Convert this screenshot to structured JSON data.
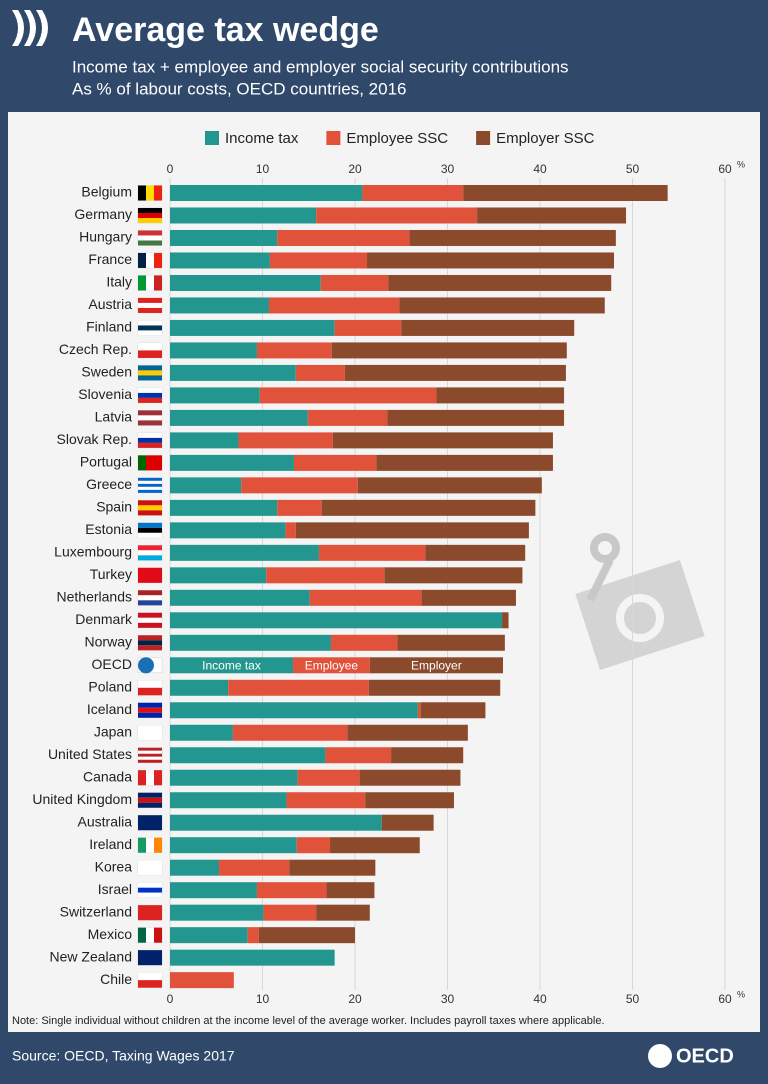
{
  "chart_data": {
    "type": "stacked-bar-horizontal",
    "title": "Average tax wedge",
    "subtitle": [
      "Income tax + employee and employer social security contributions",
      "As % of labour costs, OECD countries, 2016"
    ],
    "categories": [
      "Belgium",
      "Germany",
      "Hungary",
      "France",
      "Italy",
      "Austria",
      "Finland",
      "Czech Rep.",
      "Sweden",
      "Slovenia",
      "Latvia",
      "Slovak Rep.",
      "Portugal",
      "Greece",
      "Spain",
      "Estonia",
      "Luxembourg",
      "Turkey",
      "Netherlands",
      "Denmark",
      "Norway",
      "OECD",
      "Poland",
      "Iceland",
      "Japan",
      "United States",
      "Canada",
      "United Kingdom",
      "Australia",
      "Ireland",
      "Korea",
      "Israel",
      "Switzerland",
      "Mexico",
      "New Zealand",
      "Chile"
    ],
    "series": [
      {
        "name": "Income tax",
        "color": "#23978f",
        "values": [
          20.8,
          15.8,
          11.6,
          10.8,
          16.3,
          10.7,
          17.8,
          9.4,
          13.6,
          9.7,
          14.9,
          7.4,
          13.4,
          7.7,
          11.6,
          12.5,
          16.1,
          10.4,
          15.1,
          35.9,
          17.4,
          13.3,
          6.3,
          26.8,
          6.8,
          16.8,
          13.8,
          12.6,
          22.9,
          13.7,
          5.3,
          9.4,
          10.1,
          8.4,
          17.8,
          0
        ],
        "bar_labels": [
          null,
          null,
          null,
          null,
          null,
          null,
          null,
          null,
          null,
          null,
          null,
          null,
          null,
          null,
          null,
          null,
          null,
          null,
          null,
          null,
          null,
          "Income tax",
          null,
          null,
          null,
          null,
          null,
          null,
          null,
          null,
          null,
          null,
          null,
          null,
          null,
          null
        ]
      },
      {
        "name": "Employee SSC",
        "color": "#e0523a",
        "values": [
          10.9,
          17.4,
          14.3,
          10.5,
          7.3,
          14.1,
          7.2,
          8.1,
          5.3,
          19.1,
          8.6,
          10.2,
          8.9,
          12.6,
          4.8,
          1.1,
          11.5,
          12.8,
          12.1,
          0,
          7.2,
          8.3,
          15.2,
          0.3,
          12.4,
          7.1,
          6.7,
          8.5,
          0,
          3.6,
          7.6,
          7.5,
          5.7,
          1.2,
          0,
          6.9
        ],
        "bar_labels": [
          null,
          null,
          null,
          null,
          null,
          null,
          null,
          null,
          null,
          null,
          null,
          null,
          null,
          null,
          null,
          null,
          null,
          null,
          null,
          null,
          null,
          "Employee",
          null,
          null,
          null,
          null,
          null,
          null,
          null,
          null,
          null,
          null,
          null,
          null,
          null,
          null
        ]
      },
      {
        "name": "Employer SSC",
        "color": "#8c4a2c",
        "values": [
          22.1,
          16.1,
          22.3,
          26.7,
          24.1,
          22.2,
          18.7,
          25.4,
          23.9,
          13.8,
          19.1,
          23.8,
          19.1,
          19.9,
          23.1,
          25.2,
          10.8,
          14.9,
          10.2,
          0.7,
          11.6,
          14.4,
          14.2,
          7.0,
          13.0,
          7.8,
          10.9,
          9.6,
          5.6,
          9.7,
          9.3,
          5.2,
          5.8,
          10.4,
          0,
          0
        ],
        "bar_labels": [
          null,
          null,
          null,
          null,
          null,
          null,
          null,
          null,
          null,
          null,
          null,
          null,
          null,
          null,
          null,
          null,
          null,
          null,
          null,
          null,
          null,
          "Employer",
          null,
          null,
          null,
          null,
          null,
          null,
          null,
          null,
          null,
          null,
          null,
          null,
          null,
          null
        ]
      }
    ],
    "xlim": [
      0,
      60
    ],
    "xticks": [
      0,
      10,
      20,
      30,
      40,
      50,
      60
    ],
    "x_unit": "%",
    "note": "Note: Single individual without children at the income level of the average worker. Includes payroll taxes where applicable.",
    "source": "Source: OECD, Taxing Wages 2017",
    "brand": "OECD"
  }
}
